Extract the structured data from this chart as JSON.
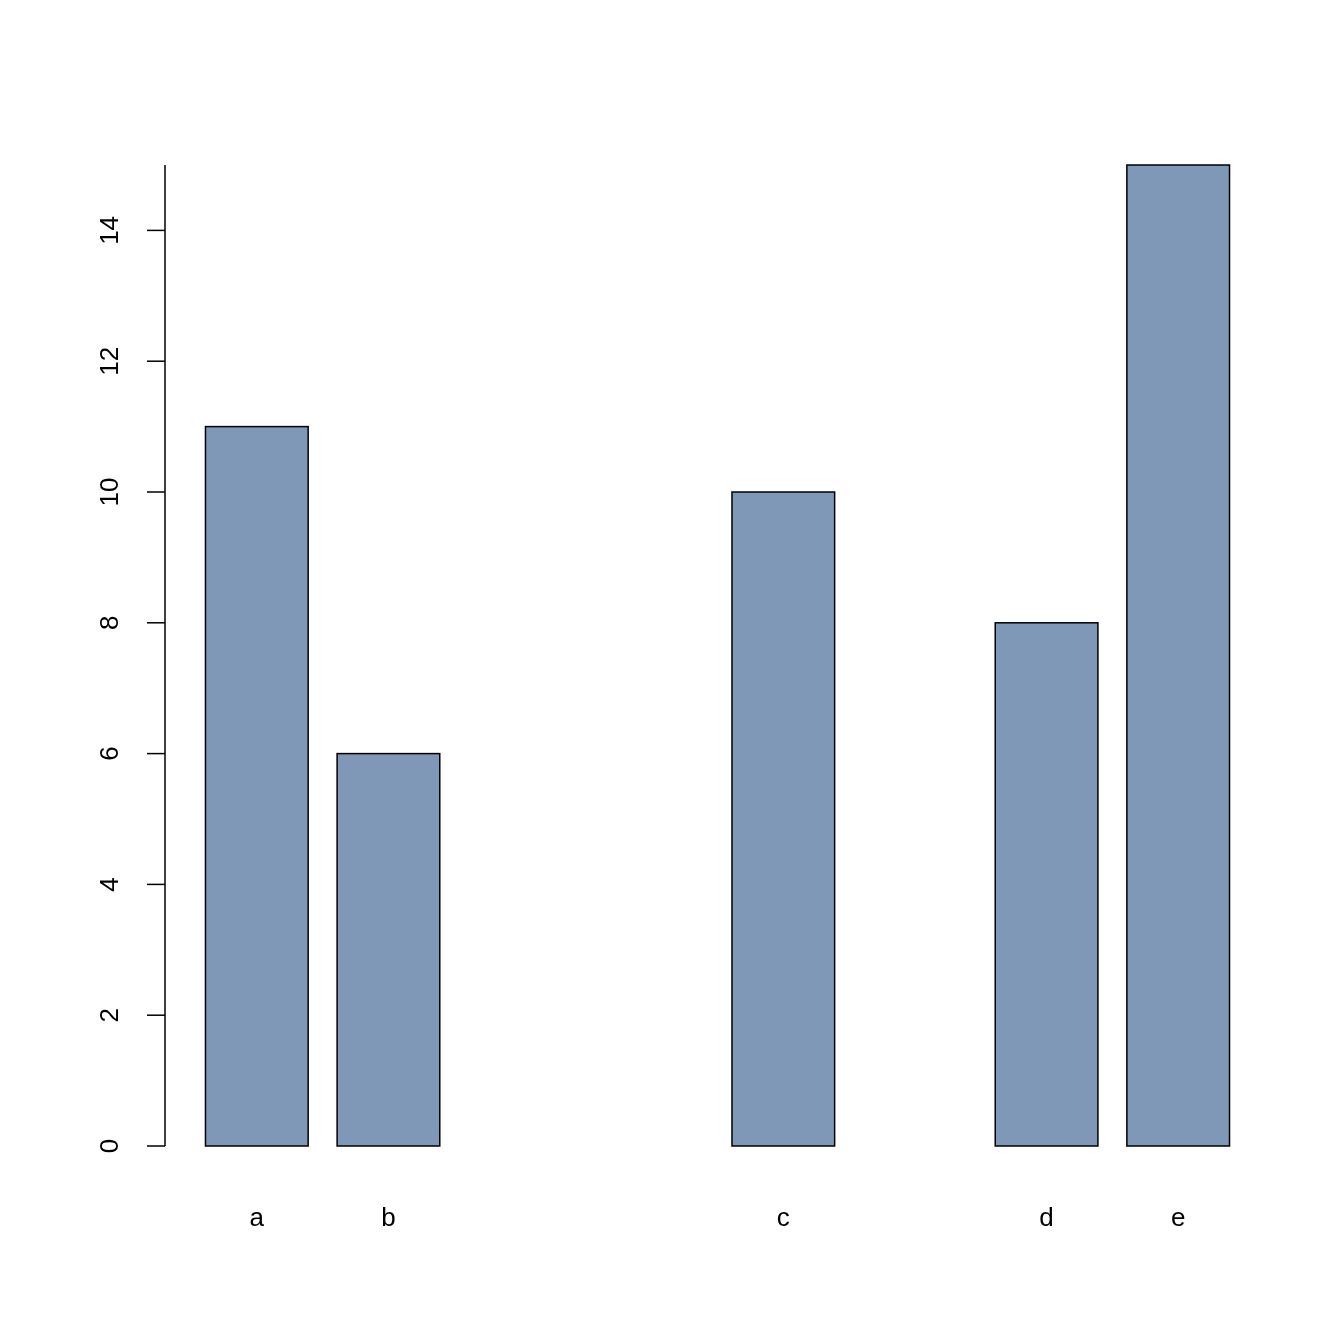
{
  "chart_data": {
    "type": "bar",
    "categories": [
      "a",
      "b",
      null,
      null,
      "c",
      null,
      "d",
      "e"
    ],
    "values": [
      11,
      6,
      null,
      null,
      10,
      null,
      8,
      15
    ],
    "color": "#7f98b7",
    "ylim": [
      0,
      15
    ],
    "yticks": [
      0,
      2,
      4,
      6,
      8,
      10,
      12,
      14
    ],
    "grid": false
  }
}
